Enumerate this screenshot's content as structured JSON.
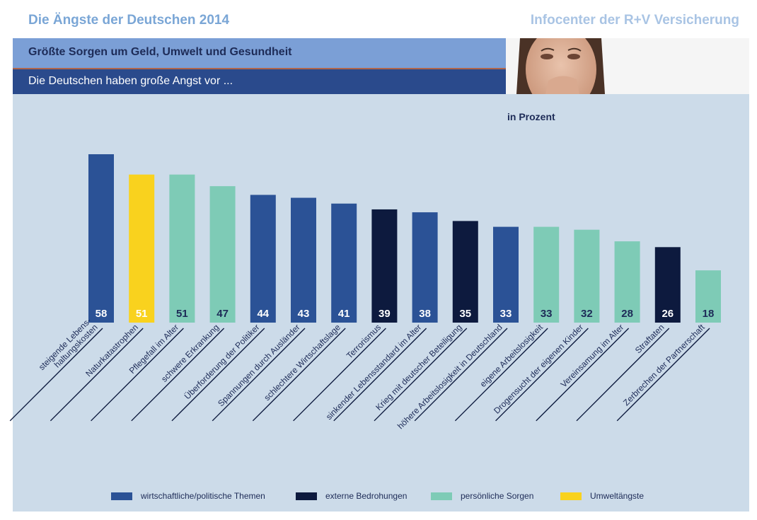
{
  "header": {
    "title": "Die Ängste der Deutschen 2014",
    "brand": "Infocenter der R+V Versicherung",
    "subtitle": "Größte Sorgen um Geld, Umwelt und Gesundheit",
    "lead": "Die Deutschen haben große Angst vor ..."
  },
  "colors": {
    "wirtschaftlich": "#2b5296",
    "extern": "#0d1a3e",
    "persoenlich": "#7ecbb6",
    "umwelt": "#f9d21e",
    "panel": "#ccdbe9"
  },
  "chart_data": {
    "type": "bar",
    "unit_label": "in Prozent",
    "ylim": [
      0,
      70
    ],
    "categories": [
      "steigende Lebens-\nhaltungskosten",
      "Naturkatastrophen",
      "Pflegefall im Alter",
      "schwere Erkrankung",
      "Überforderung der Politiker",
      "Spannungen durch Ausländer",
      "schlechtere Wirtschaftslage",
      "Terrorismus",
      "sinkender Lebensstandard im Alter",
      "Krieg mit deutscher Beteiligung",
      "höhere Arbeitslosigkeit in Deutschland",
      "eigene Arbeitslosigkeit",
      "Drogensucht der eigenen Kinder",
      "Vereinsamung im Alter",
      "Straftaten",
      "Zerbrechen der Partnerschaft"
    ],
    "values": [
      58,
      51,
      51,
      47,
      44,
      43,
      41,
      39,
      38,
      35,
      33,
      33,
      32,
      28,
      26,
      18
    ],
    "groups": [
      "wirtschaftlich",
      "umwelt",
      "persoenlich",
      "persoenlich",
      "wirtschaftlich",
      "wirtschaftlich",
      "wirtschaftlich",
      "extern",
      "wirtschaftlich",
      "extern",
      "wirtschaftlich",
      "persoenlich",
      "persoenlich",
      "persoenlich",
      "extern",
      "persoenlich"
    ],
    "legend": [
      {
        "key": "wirtschaftlich",
        "label": "wirtschaftliche/politische Themen"
      },
      {
        "key": "extern",
        "label": "externe Bedrohungen"
      },
      {
        "key": "persoenlich",
        "label": "persönliche Sorgen"
      },
      {
        "key": "umwelt",
        "label": "Umweltängste"
      }
    ]
  }
}
